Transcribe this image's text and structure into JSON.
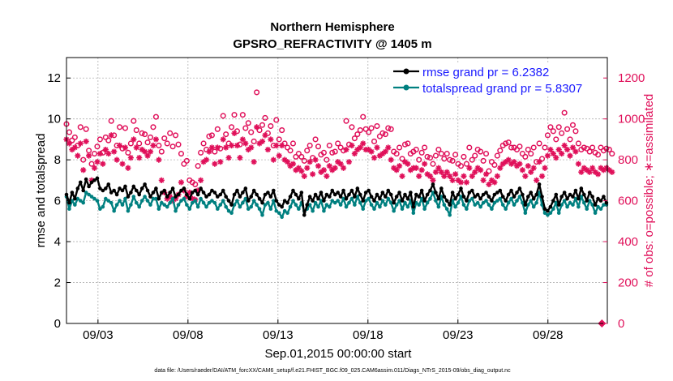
{
  "chart_data": {
    "type": "line",
    "title": "Northern Hemisphere",
    "subtitle": "GPSRO_REFRACTIVITY @ 1405 m",
    "xlabel": "Sep.01,2015 00:00:00 start",
    "ylabel": "rmse and totalspread",
    "ylabel_right": "# of obs: o=possible; ∗=assimilated",
    "footer": "data file: /Users/raeder/DAI/ATM_forcXX/CAM6_setup/f.e21.FHIST_BGC.f09_025.CAM6assim.011/Diags_NTrS_2015-09/obs_diag_output.nc",
    "x_ticks": [
      "09/03",
      "09/08",
      "09/13",
      "09/18",
      "09/23",
      "09/28"
    ],
    "x_tick_days": [
      3,
      8,
      13,
      18,
      23,
      28
    ],
    "xlim": [
      1.25,
      31.3
    ],
    "y_ticks": [
      "0",
      "2",
      "4",
      "6",
      "8",
      "10",
      "12"
    ],
    "ylim": [
      0,
      13
    ],
    "y2_ticks": [
      "0",
      "200",
      "400",
      "600",
      "800",
      "1000",
      "1200"
    ],
    "y2lim": [
      0,
      1300
    ],
    "colors": {
      "rmse": "#000000",
      "spread": "#008080",
      "obs": "#e0105a",
      "legend_text": "#1a1aff"
    },
    "series": [
      {
        "name": "rmse grand pr = 6.2382",
        "values": [
          6.3,
          5.9,
          6.4,
          6.1,
          6.6,
          6.9,
          6.5,
          7.05,
          6.7,
          6.9,
          7.0,
          7.1,
          6.6,
          6.5,
          6.6,
          6.8,
          6.4,
          6.5,
          6.3,
          6.6,
          6.5,
          6.7,
          6.2,
          6.4,
          6.7,
          6.5,
          6.3,
          6.6,
          6.8,
          6.5,
          6.2,
          6.4,
          6.6,
          6.1,
          6.4,
          6.5,
          6.2,
          6.4,
          6.6,
          6.2,
          6.3,
          6.5,
          6.6,
          6.3,
          6.1,
          6.4,
          6.5,
          6.3,
          6.6,
          6.4,
          6.2,
          6.3,
          6.5,
          6.4,
          6.2,
          6.3,
          6.5,
          6.2,
          6.0,
          5.8,
          6.3,
          6.5,
          6.2,
          6.4,
          6.6,
          6.0,
          6.2,
          6.5,
          6.3,
          6.1,
          5.9,
          6.3,
          6.4,
          6.2,
          6.5,
          6.0,
          5.8,
          5.7,
          6.0,
          5.9,
          6.2,
          6.5,
          6.3,
          6.1,
          6.4,
          5.3,
          5.8,
          6.2,
          6.0,
          6.3,
          6.1,
          6.4,
          6.0,
          6.3,
          6.2,
          6.5,
          6.3,
          6.4,
          6.2,
          6.5,
          6.1,
          6.3,
          6.5,
          6.2,
          6.6,
          6.3,
          6.0,
          6.4,
          6.5,
          6.2,
          6.0,
          6.3,
          6.1,
          6.4,
          6.2,
          6.5,
          6.3,
          5.9,
          6.2,
          6.4,
          6.0,
          6.3,
          6.1,
          6.4,
          5.7,
          6.3,
          6.2,
          6.5,
          6.0,
          6.3,
          6.5,
          6.8,
          6.4,
          6.1,
          6.6,
          6.2,
          6.0,
          5.8,
          6.4,
          6.1,
          6.3,
          6.6,
          6.2,
          6.0,
          6.4,
          6.5,
          6.2,
          6.3,
          6.1,
          6.3,
          6.4,
          6.2,
          6.0,
          6.3,
          6.4,
          6.5,
          6.2,
          6.0,
          6.3,
          6.5,
          6.2,
          6.4,
          6.6,
          6.3,
          5.8,
          6.2,
          6.4,
          6.1,
          6.3,
          6.8,
          6.2,
          5.6,
          5.5,
          5.7,
          6.0,
          6.3,
          5.8,
          6.2,
          6.4,
          6.1,
          6.3,
          6.2,
          6.5,
          6.1,
          6.6,
          6.3,
          6.0,
          6.4,
          6.2,
          5.8,
          6.1,
          6.0,
          6.2,
          5.9
        ],
        "color": "#000000",
        "marker": "*"
      },
      {
        "name": "totalspread grand pr = 5.8307",
        "values": [
          6.2,
          5.6,
          6.0,
          5.8,
          6.1,
          6.0,
          5.9,
          6.4,
          6.3,
          6.2,
          6.1,
          6.0,
          5.6,
          5.7,
          6.1,
          6.0,
          5.9,
          5.5,
          5.8,
          6.0,
          5.8,
          6.1,
          5.5,
          5.8,
          6.2,
          5.9,
          5.7,
          6.0,
          6.2,
          6.0,
          5.8,
          6.1,
          6.1,
          5.6,
          5.9,
          5.8,
          5.7,
          5.9,
          6.1,
          5.5,
          5.8,
          6.0,
          6.1,
          5.8,
          5.6,
          5.9,
          6.0,
          5.7,
          6.1,
          5.9,
          5.7,
          5.9,
          6.0,
          5.9,
          5.6,
          5.8,
          6.0,
          5.7,
          5.5,
          5.4,
          5.8,
          6.0,
          5.7,
          5.9,
          6.1,
          5.6,
          5.7,
          6.0,
          5.8,
          5.6,
          5.3,
          5.8,
          5.9,
          5.6,
          6.0,
          5.5,
          5.4,
          5.2,
          5.5,
          5.4,
          5.7,
          6.0,
          5.8,
          5.6,
          5.9,
          5.5,
          5.6,
          5.8,
          5.5,
          5.9,
          5.7,
          6.0,
          5.5,
          5.8,
          5.7,
          6.0,
          5.9,
          6.0,
          5.8,
          6.1,
          5.7,
          5.9,
          6.1,
          5.8,
          6.2,
          5.9,
          5.6,
          6.0,
          6.1,
          5.8,
          5.6,
          5.9,
          5.7,
          6.0,
          5.8,
          6.1,
          5.9,
          5.5,
          5.8,
          6.0,
          5.6,
          5.9,
          5.7,
          6.0,
          5.4,
          5.9,
          5.8,
          6.1,
          5.6,
          5.9,
          6.1,
          6.4,
          6.0,
          5.7,
          6.2,
          5.8,
          5.6,
          5.3,
          6.0,
          5.7,
          5.9,
          6.2,
          5.8,
          5.6,
          6.0,
          6.1,
          5.8,
          5.9,
          5.7,
          5.9,
          6.0,
          5.8,
          5.6,
          5.9,
          6.0,
          6.1,
          5.8,
          5.6,
          5.9,
          6.1,
          5.8,
          6.0,
          6.2,
          5.9,
          5.4,
          5.8,
          6.0,
          5.7,
          5.9,
          6.4,
          5.8,
          5.4,
          5.3,
          5.4,
          5.6,
          5.9,
          5.4,
          5.8,
          6.0,
          5.7,
          5.9,
          5.8,
          6.1,
          5.7,
          6.2,
          5.9,
          5.6,
          6.0,
          5.8,
          5.4,
          5.7,
          5.6,
          5.8,
          5.8
        ],
        "color": "#008080",
        "marker": "o"
      },
      {
        "name": "# of obs: possible",
        "values": [
          975,
          935,
          895,
          910,
          870,
          960,
          800,
          950,
          845,
          780,
          830,
          865,
          900,
          835,
          910,
          895,
          990,
          920,
          870,
          960,
          855,
          955,
          835,
          880,
          990,
          945,
          880,
          930,
          925,
          885,
          910,
          960,
          1010,
          870,
          840,
          905,
          880,
          930,
          865,
          920,
          875,
          830,
          780,
          795,
          700,
          690,
          680,
          770,
          835,
          880,
          850,
          915,
          920,
          840,
          950,
          855,
          1015,
          925,
          880,
          960,
          1020,
          940,
          875,
          1020,
          955,
          980,
          935,
          890,
          1130,
          945,
          970,
          1005,
          930,
          965,
          870,
          995,
          900,
          945,
          880,
          860,
          845,
          880,
          815,
          830,
          815,
          795,
          845,
          870,
          810,
          900,
          865,
          825,
          835,
          800,
          870,
          835,
          840,
          880,
          860,
          845,
          990,
          875,
          960,
          905,
          925,
          945,
          1010,
          950,
          935,
          955,
          890,
          965,
          915,
          930,
          925,
          955,
          950,
          840,
          830,
          860,
          805,
          875,
          880,
          830,
          840,
          850,
          800,
          835,
          860,
          815,
          810,
          780,
          820,
          850,
          830,
          805,
          830,
          800,
          795,
          825,
          780,
          770,
          815,
          780,
          860,
          800,
          820,
          850,
          840,
          795,
          830,
          745,
          790,
          775,
          820,
          845,
          870,
          880,
          885,
          860,
          860,
          850,
          865,
          830,
          815,
          850,
          830,
          860,
          790,
          880,
          805,
          860,
          920,
          960,
          940,
          900,
          960,
          930,
          1030,
          950,
          900,
          970,
          940,
          880,
          850,
          860,
          855,
          840,
          860,
          835,
          825,
          860,
          845,
          855,
          850,
          830
        ],
        "color": "#e0105a",
        "marker": "o",
        "axis": "right"
      },
      {
        "name": "# of obs: assimilated",
        "values": [
          900,
          880,
          850,
          860,
          820,
          880,
          750,
          890,
          820,
          700,
          760,
          790,
          830,
          780,
          850,
          830,
          920,
          840,
          800,
          870,
          780,
          860,
          760,
          810,
          900,
          860,
          810,
          850,
          840,
          820,
          840,
          870,
          900,
          800,
          700,
          640,
          610,
          620,
          600,
          610,
          630,
          690,
          650,
          620,
          640,
          610,
          605,
          650,
          700,
          790,
          800,
          840,
          860,
          780,
          860,
          790,
          900,
          860,
          810,
          870,
          930,
          870,
          810,
          900,
          880,
          850,
          860,
          790,
          960,
          880,
          890,
          920,
          850,
          900,
          800,
          870,
          820,
          870,
          800,
          790,
          770,
          780,
          750,
          760,
          745,
          720,
          760,
          790,
          730,
          800,
          770,
          740,
          750,
          720,
          770,
          750,
          760,
          790,
          780,
          760,
          850,
          790,
          870,
          830,
          850,
          860,
          880,
          850,
          850,
          840,
          810,
          860,
          820,
          830,
          840,
          860,
          800,
          760,
          750,
          770,
          720,
          790,
          780,
          750,
          760,
          760,
          720,
          750,
          780,
          730,
          720,
          700,
          740,
          760,
          740,
          720,
          740,
          720,
          700,
          730,
          700,
          690,
          720,
          690,
          760,
          720,
          740,
          760,
          750,
          700,
          730,
          680,
          700,
          690,
          720,
          760,
          780,
          790,
          800,
          780,
          790,
          770,
          780,
          750,
          720,
          770,
          740,
          760,
          700,
          790,
          720,
          760,
          820,
          850,
          830,
          810,
          850,
          830,
          870,
          850,
          820,
          860,
          840,
          780,
          740,
          760,
          750,
          740,
          760,
          740,
          730,
          760,
          750,
          760,
          750,
          740
        ],
        "color": "#e0105a",
        "marker": "*",
        "axis": "right"
      }
    ],
    "legend": [
      "rmse grand pr = 6.2382",
      "totalspread grand pr = 5.8307"
    ],
    "legend_position": "top-right",
    "grid": true,
    "extra_points": [
      {
        "x_day": 31.0,
        "y_right": 0,
        "label": "0"
      }
    ]
  }
}
